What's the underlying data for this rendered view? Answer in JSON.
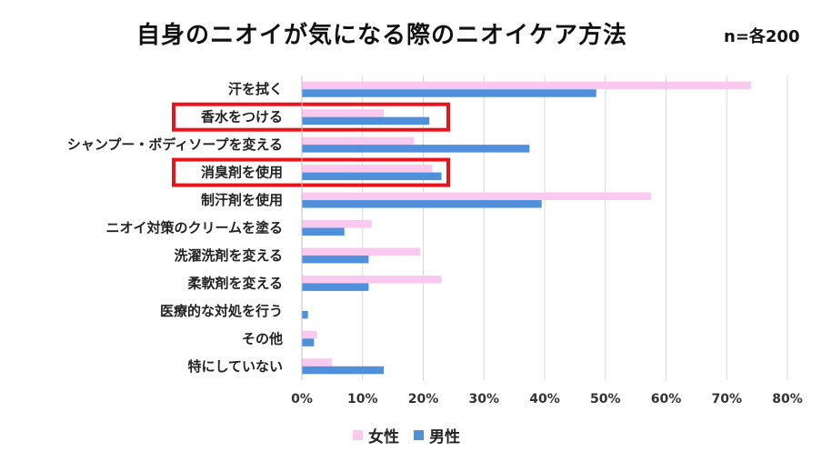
{
  "chart_data": {
    "type": "bar",
    "orientation": "horizontal",
    "title": "自身のニオイが気になる際のニオイケア方法",
    "sample_note": "n=各200",
    "categories": [
      "汗を拭く",
      "香水をつける",
      "シャンプー・ボディソープを変える",
      "消臭剤を使用",
      "制汗剤を使用",
      "ニオイ対策のクリームを塗る",
      "洗濯洗剤を変える",
      "柔軟剤を変える",
      "医療的な対処を行う",
      "その他",
      "特にしていない"
    ],
    "series": [
      {
        "name": "女性",
        "color": "#f9c9f0",
        "values": [
          74,
          13.5,
          18.5,
          21.5,
          57.5,
          11.5,
          19.5,
          23,
          0,
          2.5,
          5
        ]
      },
      {
        "name": "男性",
        "color": "#4f8fdc",
        "values": [
          48.5,
          21,
          37.5,
          23,
          39.5,
          7,
          11,
          11,
          1,
          2,
          13.5
        ]
      }
    ],
    "xlim": [
      0,
      80
    ],
    "xticks": [
      0,
      10,
      20,
      30,
      40,
      50,
      60,
      70,
      80
    ],
    "tick_labels": [
      "0%",
      "10%",
      "20%",
      "30%",
      "40%",
      "50%",
      "60%",
      "70%",
      "80%"
    ],
    "highlighted_categories": [
      "香水をつける",
      "消臭剤を使用"
    ],
    "highlight_color": "#e8141b",
    "legend_position": "bottom"
  }
}
